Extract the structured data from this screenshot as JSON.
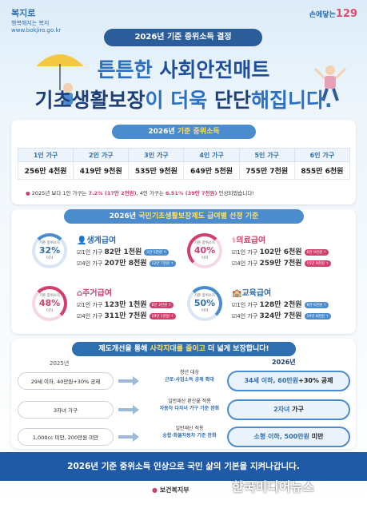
{
  "header": {
    "left_logo": "복지로",
    "left_logo_sub": "행복해지는 복지",
    "left_logo_url": "www.bokjiro.go.kr",
    "right_logo_text": "손에닿는",
    "right_logo_num": "129",
    "pill": "2026년 기준 중위소득 결정",
    "headline1_a": "튼튼한 ",
    "headline1_b": "사회안전매트",
    "headline2_a": "기초생활보장",
    "headline2_b": "이 더욱 ",
    "headline2_c": "단단",
    "headline2_d": "해집니다."
  },
  "income": {
    "pill_a": "2026년 ",
    "pill_b": "기준 중위소득",
    "headers": [
      "1인 가구",
      "2인 가구",
      "3인 가구",
      "4인 가구",
      "5인 가구",
      "6인 가구"
    ],
    "values": [
      "256만 4천원",
      "419만 9천원",
      "535만 9천원",
      "649만 5천원",
      "755만 7천원",
      "855만 6천원"
    ],
    "note_a": "2025년 보다 1인 가구는 ",
    "note_b": "7.2% (17만 2천원)",
    "note_c": ", 4인 가구는 ",
    "note_d": "6.51% (39만 7천원)",
    "note_e": " 인상되었습니다!"
  },
  "benefits": {
    "pill_a": "2026년 ",
    "pill_b": "국민기초생활보장제도 급여별 선정 기준",
    "ring_label": "기준 중위소득",
    "ring_sub": "이하",
    "items": [
      {
        "title": "생계급여",
        "pct": "32%",
        "l1": "1인 가구 ",
        "v1": "82만 1천원",
        "b1": "5만 5천원 ↑",
        "l2": "4인 가구 ",
        "v2": "207만 8천원",
        "b2": "12만 7천원 ↑"
      },
      {
        "title": "의료급여",
        "pct": "40%",
        "l1": "1인 가구 ",
        "v1": "102만 6천원",
        "b1": "6만 9천원 ↑",
        "l2": "4인 가구 ",
        "v2": "259만 7천원",
        "b2": "15만 9천원 ↑"
      },
      {
        "title": "주거급여",
        "pct": "48%",
        "l1": "1인 가구 ",
        "v1": "123만 1천원",
        "b1": "8만 3천원 ↑",
        "l2": "4인 가구 ",
        "v2": "311만 7천원",
        "b2": "19만 1천원 ↑"
      },
      {
        "title": "교육급여",
        "pct": "50%",
        "l1": "1인 가구 ",
        "v1": "128만 2천원",
        "b1": "8만 6천원 ↑",
        "l2": "4인 가구 ",
        "v2": "324만 7천원",
        "b2": "19만 8천원 ↑"
      }
    ]
  },
  "reform": {
    "pill_a": "제도개선을 통해 ",
    "pill_b": "사각지대를 줄이고",
    "pill_c": " 더 넓게 보장합니다!",
    "year_old": "2025년",
    "year_new": "2026년",
    "rows": [
      {
        "old": "29세 이하, 40만원+30% 공제",
        "mid1": "청년 대상",
        "mid2": "근로·사업소득 공제 확대",
        "new_a": "34세 이하, 60만원",
        "new_b": "+30% 공제"
      },
      {
        "old": "3자녀 가구",
        "mid1": "일반재산 환산율 적용",
        "mid2": "자동차 다자녀 가구 기준 완화",
        "new_a": "2자녀",
        "new_b": " 가구"
      },
      {
        "old": "1,000cc 미만, 200만원 미만",
        "mid1": "일반재산 적용",
        "mid2": "승합·화물자동차 기준 완화",
        "new_a": "소형 이하, 500만원",
        "new_b": " 미만"
      }
    ]
  },
  "footer": {
    "line": "2026년 기준 중위소득 인상으로 국민 삶의 기본을 지켜나갑니다.",
    "ministry": "보건복지부",
    "media": "한국미디어뉴스",
    "media_en": "KOREA MEDIA NEWS"
  },
  "colors": {
    "primary": "#2f6fb0",
    "navy": "#1d3f7a",
    "pink": "#d33e6a",
    "band": "#1f5aa6"
  }
}
